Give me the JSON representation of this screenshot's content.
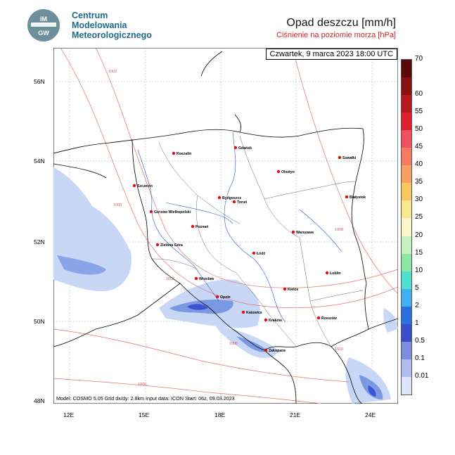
{
  "org": {
    "logo_text": "IMGW",
    "line1": "Centrum",
    "line2": "Modelowania",
    "line3": "Meteorologicznego"
  },
  "title": "Opad deszczu [mm/h]",
  "subtitle": "Ciśnienie na poziomie morza [hPa]",
  "date": "Czwartek, 9 marca 2023 18:00 UTC",
  "info": "Model: COSMO 5.05  Grid dx/dy: 2.8km  Input data: ICON  Start: 06z, 09.03.2023",
  "lon_labels": [
    "12E",
    "15E",
    "18E",
    "21E",
    "24E"
  ],
  "lat_labels": [
    "56N",
    "54N",
    "52N",
    "50N",
    "48N"
  ],
  "isobar_labels": [
    "1002",
    "1000",
    "1002",
    "1006",
    "1006",
    "1008",
    "1010"
  ],
  "colors": {
    "precip_light": "#c8d7f6",
    "precip_mid": "#7b99e3",
    "precip_heavy": "#3a55cf",
    "isobar": "#e07070",
    "border": "#000000",
    "river": "#3355cc",
    "city": "#dd1111"
  },
  "cities": [
    {
      "name": "Koszalin"
    },
    {
      "name": "Gdańsk"
    },
    {
      "name": "Suwałki"
    },
    {
      "name": "Olsztyn"
    },
    {
      "name": "Szczecin"
    },
    {
      "name": "Bydgoszcz"
    },
    {
      "name": "Toruń"
    },
    {
      "name": "Białystok"
    },
    {
      "name": "Gorzów Wielkopolski"
    },
    {
      "name": "Poznań"
    },
    {
      "name": "Warszawa"
    },
    {
      "name": "Zielona Góra"
    },
    {
      "name": "Łódź"
    },
    {
      "name": "Lublin"
    },
    {
      "name": "Wrocław"
    },
    {
      "name": "Kielce"
    },
    {
      "name": "Opole"
    },
    {
      "name": "Katowice"
    },
    {
      "name": "Kraków"
    },
    {
      "name": "Rzeszów"
    },
    {
      "name": "Zakopane"
    }
  ],
  "colorbar": {
    "labels": [
      "70",
      "60",
      "55",
      "50",
      "45",
      "40",
      "35",
      "30",
      "25",
      "20",
      "15",
      "10",
      "5",
      "2",
      "1",
      "0.5",
      "0.1",
      "0.01"
    ],
    "colors": [
      "#5a0a0a",
      "#8a1010",
      "#b81820",
      "#e02030",
      "#f05060",
      "#f57a60",
      "#f7a060",
      "#f8c860",
      "#f8e890",
      "#f6f8c8",
      "#c8f0c0",
      "#8ae8a0",
      "#50e0d0",
      "#40b0f0",
      "#2a70e0",
      "#3a4ecc",
      "#7b8de0",
      "#b0bcee",
      "#dfe4f8"
    ]
  }
}
